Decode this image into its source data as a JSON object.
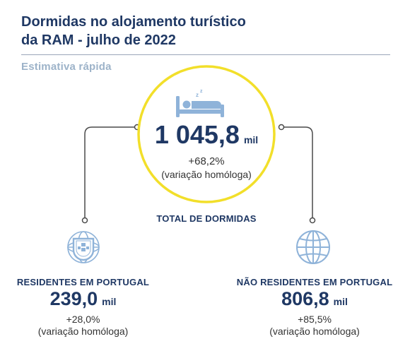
{
  "header": {
    "title_line1": "Dormidas no alojamento turístico",
    "title_line2": "da RAM - julho de 2022",
    "subtitle": "Estimativa rápida"
  },
  "total": {
    "value": "1 045,8",
    "unit": "mil",
    "change": "+68,2%",
    "change_note": "(variação homóloga)",
    "label": "TOTAL DE DORMIDAS",
    "icon": "bed-icon"
  },
  "residents": {
    "label": "RESIDENTES EM PORTUGAL",
    "value": "239,0",
    "unit": "mil",
    "change": "+28,0%",
    "change_note": "(variação homóloga)",
    "icon": "portugal-shield-icon"
  },
  "non_residents": {
    "label": "NÃO RESIDENTES EM PORTUGAL",
    "value": "806,8",
    "unit": "mil",
    "change": "+85,5%",
    "change_note": "(variação homóloga)",
    "icon": "globe-icon"
  },
  "colors": {
    "title": "#1f3864",
    "subtitle": "#9db3c9",
    "circle_ring": "#f2df2a",
    "icon_light_blue": "#8fb3d9",
    "connector": "#4a4a4a"
  }
}
